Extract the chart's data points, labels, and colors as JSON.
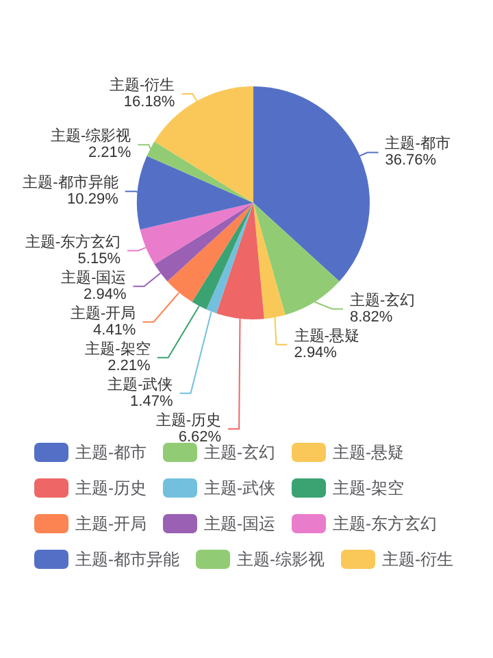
{
  "chart_data": {
    "type": "pie",
    "categories": [
      "主题-都市",
      "主题-玄幻",
      "主题-悬疑",
      "主题-历史",
      "主题-武侠",
      "主题-架空",
      "主题-开局",
      "主题-国运",
      "主题-东方玄幻",
      "主题-都市异能",
      "主题-综影视",
      "主题-衍生"
    ],
    "values": [
      36.76,
      8.82,
      2.94,
      6.62,
      1.47,
      2.21,
      4.41,
      2.94,
      5.15,
      10.29,
      2.21,
      16.18
    ],
    "colors": [
      "#5470c6",
      "#91cc75",
      "#fac858",
      "#ee6666",
      "#73c0de",
      "#3ba272",
      "#fc8452",
      "#9a60b4",
      "#ea7ccc",
      "#5470c6",
      "#91cc75",
      "#fac858"
    ],
    "value_labels": [
      "36.76%",
      "8.82%",
      "2.94%",
      "6.62%",
      "1.47%",
      "2.21%",
      "4.41%",
      "2.94%",
      "5.15%",
      "10.29%",
      "2.21%",
      "16.18%"
    ],
    "legend": "bottom"
  }
}
